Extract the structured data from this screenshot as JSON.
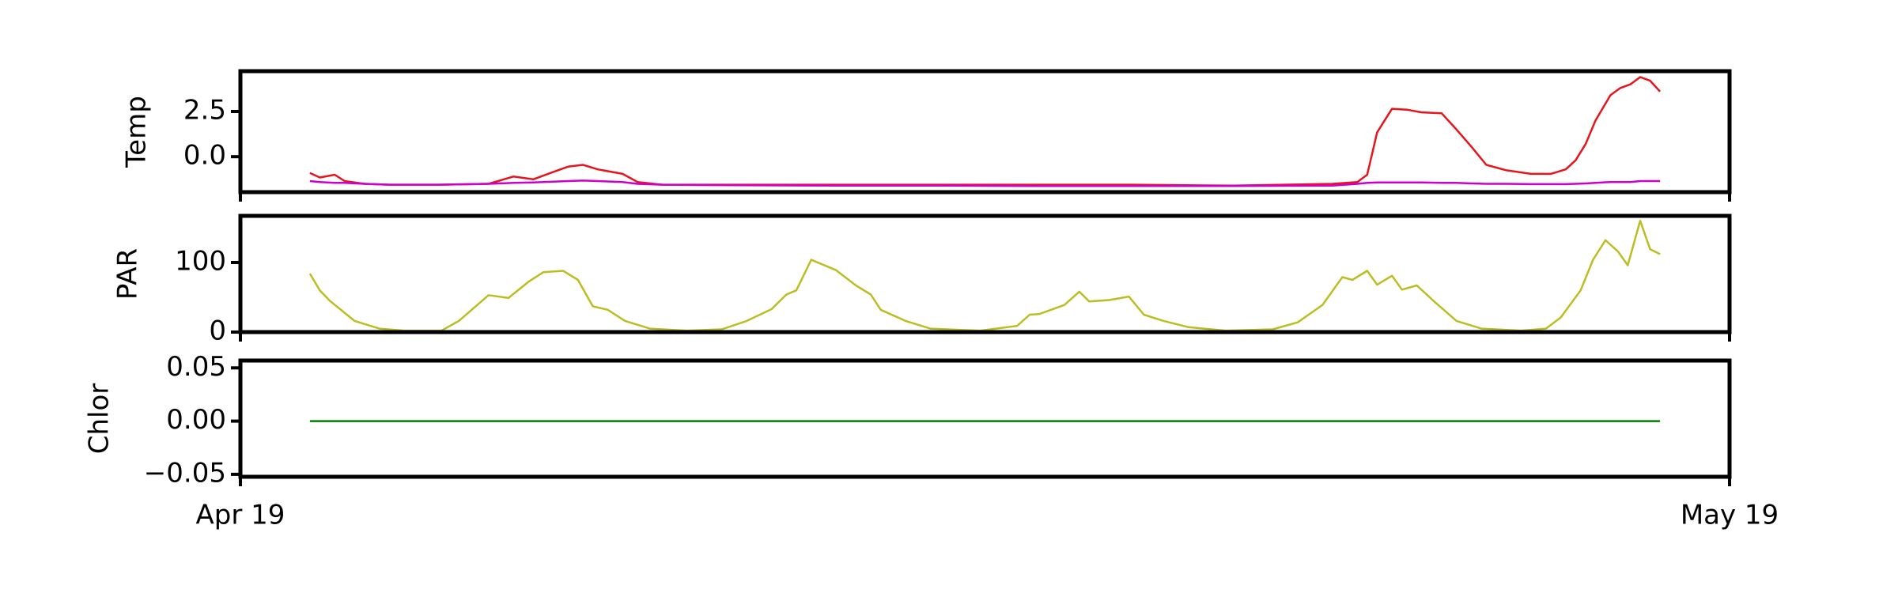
{
  "chart_data": [
    {
      "type": "line",
      "ylabel": "Temp",
      "x": [
        1.4,
        1.6,
        1.9,
        2.1,
        2.5,
        3,
        4,
        5,
        5.5,
        5.9,
        6.3,
        6.6,
        6.9,
        7.2,
        7.7,
        8.0,
        8.5,
        10,
        12,
        14,
        16,
        18,
        20,
        22,
        22.5,
        22.7,
        22.9,
        23.2,
        23.5,
        23.8,
        24.2,
        24.5,
        24.8,
        25.1,
        25.5,
        26,
        26.4,
        26.7,
        26.9,
        27.1,
        27.3,
        27.6,
        27.8,
        28.0,
        28.2,
        28.4,
        28.6
      ],
      "series": [
        {
          "color": "#e8141c",
          "values": [
            -0.9,
            -1.15,
            -1.0,
            -1.35,
            -1.5,
            -1.55,
            -1.55,
            -1.5,
            -1.1,
            -1.25,
            -0.85,
            -0.55,
            -0.45,
            -0.7,
            -0.95,
            -1.4,
            -1.55,
            -1.55,
            -1.55,
            -1.55,
            -1.55,
            -1.55,
            -1.6,
            -1.5,
            -1.4,
            -1.0,
            1.35,
            2.65,
            2.6,
            2.45,
            2.4,
            1.5,
            0.55,
            -0.45,
            -0.75,
            -0.95,
            -0.95,
            -0.7,
            -0.2,
            0.7,
            2.0,
            3.4,
            3.8,
            4.0,
            4.4,
            4.2,
            3.6
          ]
        },
        {
          "color": "#cc00cc",
          "values": [
            -1.35,
            -1.4,
            -1.45,
            -1.45,
            -1.5,
            -1.55,
            -1.55,
            -1.5,
            -1.45,
            -1.42,
            -1.38,
            -1.35,
            -1.32,
            -1.35,
            -1.4,
            -1.5,
            -1.55,
            -1.58,
            -1.6,
            -1.6,
            -1.62,
            -1.62,
            -1.62,
            -1.6,
            -1.5,
            -1.45,
            -1.42,
            -1.42,
            -1.42,
            -1.42,
            -1.45,
            -1.45,
            -1.48,
            -1.5,
            -1.5,
            -1.52,
            -1.52,
            -1.52,
            -1.5,
            -1.48,
            -1.45,
            -1.4,
            -1.4,
            -1.4,
            -1.35,
            -1.35,
            -1.35
          ]
        }
      ],
      "xlim": [
        0,
        30
      ],
      "ylim": [
        -1.96,
        4.73
      ],
      "yticks": [
        {
          "value": 0,
          "label": "0.0"
        },
        {
          "value": 2.5,
          "label": "2.5"
        }
      ]
    },
    {
      "type": "line",
      "ylabel": "PAR",
      "x": [
        1.4,
        1.6,
        1.8,
        2.3,
        2.8,
        3.3,
        4.05,
        4.4,
        5.0,
        5.4,
        5.8,
        6.1,
        6.5,
        6.8,
        7.1,
        7.4,
        7.75,
        8.25,
        9.0,
        9.7,
        10.2,
        10.7,
        11.0,
        11.2,
        11.5,
        12.0,
        12.4,
        12.7,
        12.9,
        13.4,
        13.9,
        14.9,
        15.65,
        15.9,
        16.1,
        16.6,
        16.9,
        17.1,
        17.5,
        17.9,
        18.2,
        18.6,
        19.1,
        19.85,
        20.8,
        21.3,
        21.8,
        22.2,
        22.4,
        22.7,
        22.9,
        23.2,
        23.4,
        23.7,
        24.05,
        24.5,
        25.0,
        25.8,
        26.3,
        26.6,
        27.0,
        27.25,
        27.5,
        27.75,
        27.95,
        28.2,
        28.4,
        28.6
      ],
      "series": [
        {
          "color": "#bcbd22",
          "values": [
            84,
            60,
            45,
            16,
            5,
            2,
            2,
            16,
            53,
            49,
            72,
            86,
            88,
            75,
            37,
            32,
            16,
            5,
            2,
            4,
            16,
            33,
            54,
            60,
            104,
            89,
            67,
            54,
            32,
            16,
            5,
            2,
            9,
            25,
            26,
            39,
            58,
            44,
            46,
            51,
            25,
            16,
            7,
            2,
            4,
            14,
            39,
            79,
            75,
            88,
            68,
            81,
            61,
            67,
            44,
            16,
            5,
            2,
            5,
            21,
            60,
            104,
            132,
            116,
            96,
            160,
            119,
            112
          ]
        }
      ],
      "xlim": [
        0,
        30
      ],
      "ylim": [
        0,
        167
      ],
      "yticks": [
        0,
        100
      ]
    },
    {
      "type": "line",
      "ylabel": "Chlor",
      "x": [
        1.4,
        28.6
      ],
      "series": [
        {
          "color": "#008000",
          "values": [
            0,
            0
          ]
        }
      ],
      "xlim": [
        0,
        30
      ],
      "ylim": [
        -0.0523,
        0.0569
      ],
      "yticks": [
        {
          "value": -0.05,
          "label": "−0.05"
        },
        {
          "value": 0,
          "label": "0.00"
        },
        {
          "value": 0.05,
          "label": "0.05"
        }
      ],
      "xticks": [
        {
          "value": 0,
          "label": "Apr 19"
        },
        {
          "value": 30,
          "label": "May 19"
        }
      ]
    }
  ]
}
